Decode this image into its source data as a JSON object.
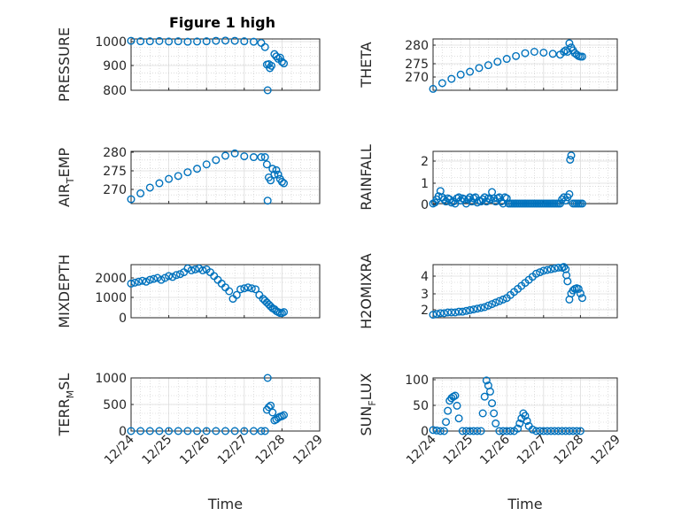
{
  "figure_title": "Figure 1 high",
  "x_tick_labels": [
    "12/24",
    "12/25",
    "12/26",
    "12/27",
    "12/28",
    "12/29"
  ],
  "x_label": "Time",
  "marker_color": "#0072BD",
  "panels": [
    {
      "id": "pressure",
      "ylabel_main": "PRESSURE",
      "ylabel_sub": "",
      "ylabel_tail": "",
      "yticks": [
        "800",
        "900",
        "1000"
      ]
    },
    {
      "id": "theta",
      "ylabel_main": "THETA",
      "ylabel_sub": "",
      "ylabel_tail": "",
      "yticks": [
        "270",
        "275",
        "280"
      ]
    },
    {
      "id": "air-temp",
      "ylabel_main": "AIR",
      "ylabel_sub": "T",
      "ylabel_tail": "EMP",
      "yticks": [
        "270",
        "275",
        "280"
      ]
    },
    {
      "id": "rainfall",
      "ylabel_main": "RAINFALL",
      "ylabel_sub": "",
      "ylabel_tail": "",
      "yticks": [
        "0",
        "1",
        "2"
      ]
    },
    {
      "id": "mixdepth",
      "ylabel_main": "MIXDEPTH",
      "ylabel_sub": "",
      "ylabel_tail": "",
      "yticks": [
        "0",
        "1000",
        "2000"
      ]
    },
    {
      "id": "h2omixra",
      "ylabel_main": "H2OMIXRA",
      "ylabel_sub": "",
      "ylabel_tail": "",
      "yticks": [
        "2",
        "3",
        "4"
      ]
    },
    {
      "id": "terr-msl",
      "ylabel_main": "TERR",
      "ylabel_sub": "M",
      "ylabel_tail": "SL",
      "yticks": [
        "0",
        "500",
        "1000"
      ]
    },
    {
      "id": "sun-flux",
      "ylabel_main": "SUN",
      "ylabel_sub": "F",
      "ylabel_tail": "LUX",
      "yticks": [
        "0",
        "50",
        "100"
      ]
    }
  ],
  "chart_data": [
    {
      "type": "scatter",
      "title": "Figure 1 high",
      "xlabel": "",
      "ylabel": "PRESSURE",
      "xlim": [
        0,
        5
      ],
      "ylim": [
        800,
        1020
      ],
      "x": [
        0,
        0.25,
        0.5,
        0.75,
        1,
        1.25,
        1.5,
        1.75,
        2,
        2.25,
        2.5,
        2.75,
        3,
        3.25,
        3.45,
        3.55,
        3.6,
        3.62,
        3.65,
        3.68,
        3.72,
        3.8,
        3.85,
        3.9,
        3.95,
        4.0,
        4.05
      ],
      "y": [
        1012,
        1010,
        1010,
        1011,
        1009,
        1010,
        1008,
        1009,
        1010,
        1012,
        1013,
        1012,
        1010,
        1008,
        1003,
        985,
        910,
        800,
        912,
        895,
        905,
        955,
        945,
        935,
        940,
        922,
        915
      ]
    },
    {
      "type": "scatter",
      "title": "",
      "xlabel": "",
      "ylabel": "THETA",
      "xlim": [
        0,
        5
      ],
      "ylim": [
        265,
        283
      ],
      "x": [
        0,
        0.25,
        0.5,
        0.75,
        1,
        1.25,
        1.5,
        1.75,
        2,
        2.25,
        2.5,
        2.75,
        3,
        3.25,
        3.45,
        3.55,
        3.6,
        3.65,
        3.7,
        3.75,
        3.8,
        3.85,
        3.9,
        3.95,
        4.0,
        4.05
      ],
      "y": [
        265.5,
        267.5,
        269,
        270.5,
        271.5,
        272.8,
        273.8,
        275,
        276,
        277,
        278,
        278.5,
        278.2,
        277.8,
        277.5,
        278.5,
        279,
        278.5,
        281.5,
        280,
        279,
        278,
        277.5,
        277,
        276.8,
        276.8
      ]
    },
    {
      "type": "scatter",
      "title": "",
      "xlabel": "",
      "ylabel": "AIR_TEMP",
      "xlim": [
        0,
        5
      ],
      "ylim": [
        263,
        281
      ],
      "x": [
        0,
        0.25,
        0.5,
        0.75,
        1,
        1.25,
        1.5,
        1.75,
        2,
        2.25,
        2.5,
        2.75,
        3,
        3.25,
        3.45,
        3.55,
        3.6,
        3.62,
        3.65,
        3.7,
        3.75,
        3.8,
        3.85,
        3.9,
        3.95,
        4.0,
        4.05
      ],
      "y": [
        264.5,
        266.5,
        268.5,
        270,
        271.5,
        272.5,
        273.8,
        275,
        276.5,
        278,
        279.5,
        280.3,
        279.3,
        279,
        279,
        279,
        276.5,
        264,
        272,
        271,
        275,
        273,
        274.5,
        273,
        271.5,
        270.5,
        270
      ]
    },
    {
      "type": "scatter",
      "title": "",
      "xlabel": "",
      "ylabel": "RAINFALL",
      "xlim": [
        0,
        5
      ],
      "ylim": [
        0,
        2.5
      ],
      "x": [
        0,
        0.05,
        0.1,
        0.15,
        0.2,
        0.25,
        0.3,
        0.35,
        0.4,
        0.45,
        0.5,
        0.55,
        0.6,
        0.65,
        0.7,
        0.75,
        0.8,
        0.85,
        0.9,
        0.95,
        1.0,
        1.05,
        1.1,
        1.15,
        1.2,
        1.25,
        1.3,
        1.35,
        1.4,
        1.45,
        1.5,
        1.55,
        1.6,
        1.65,
        1.7,
        1.75,
        1.8,
        1.85,
        1.9,
        1.95,
        2.0,
        2.05,
        2.1,
        2.15,
        2.2,
        2.25,
        2.3,
        2.35,
        2.4,
        2.45,
        2.5,
        2.55,
        2.6,
        2.65,
        2.7,
        2.75,
        2.8,
        2.85,
        2.9,
        2.95,
        3.0,
        3.05,
        3.1,
        3.15,
        3.2,
        3.25,
        3.3,
        3.35,
        3.4,
        3.45,
        3.5,
        3.55,
        3.6,
        3.65,
        3.7,
        3.72,
        3.75,
        3.8,
        3.85,
        3.9,
        3.95,
        4.0,
        4.05
      ],
      "y": [
        0,
        0.05,
        0.2,
        0.35,
        0.6,
        0.3,
        0.2,
        0.1,
        0.25,
        0.2,
        0.05,
        0.1,
        0,
        0.25,
        0.3,
        0.15,
        0.25,
        0.2,
        0,
        0.2,
        0.3,
        0.1,
        0.25,
        0.3,
        0.05,
        0.15,
        0.1,
        0.2,
        0.3,
        0.1,
        0.25,
        0.2,
        0.55,
        0.25,
        0.1,
        0.25,
        0.3,
        0.1,
        0,
        0.3,
        0.25,
        0,
        0,
        0,
        0,
        0,
        0,
        0,
        0,
        0,
        0,
        0,
        0,
        0,
        0,
        0,
        0,
        0,
        0,
        0,
        0,
        0,
        0,
        0,
        0,
        0,
        0,
        0,
        0,
        0,
        0.2,
        0.3,
        0.15,
        0.3,
        0.45,
        2.1,
        2.3,
        0,
        0,
        0,
        0,
        0,
        0
      ]
    },
    {
      "type": "scatter",
      "title": "",
      "xlabel": "",
      "ylabel": "MIXDEPTH",
      "xlim": [
        0,
        5
      ],
      "ylim": [
        0,
        2800
      ],
      "x": [
        0,
        0.1,
        0.2,
        0.3,
        0.4,
        0.5,
        0.6,
        0.7,
        0.8,
        0.9,
        1.0,
        1.1,
        1.2,
        1.3,
        1.4,
        1.5,
        1.6,
        1.7,
        1.8,
        1.9,
        2.0,
        2.1,
        2.2,
        2.3,
        2.4,
        2.5,
        2.6,
        2.7,
        2.8,
        2.9,
        3.0,
        3.1,
        3.2,
        3.3,
        3.4,
        3.5,
        3.55,
        3.6,
        3.65,
        3.7,
        3.75,
        3.8,
        3.85,
        3.9,
        3.95,
        4.0,
        4.05
      ],
      "y": [
        1800,
        1850,
        1900,
        1950,
        1900,
        2000,
        2050,
        2100,
        2000,
        2100,
        2200,
        2150,
        2250,
        2300,
        2400,
        2600,
        2500,
        2550,
        2600,
        2500,
        2550,
        2400,
        2200,
        2000,
        1800,
        1600,
        1400,
        1000,
        1200,
        1500,
        1550,
        1600,
        1550,
        1500,
        1200,
        1000,
        900,
        800,
        700,
        600,
        500,
        450,
        350,
        300,
        250,
        250,
        300
      ]
    },
    {
      "type": "scatter",
      "title": "",
      "xlabel": "",
      "ylabel": "H2OMIXRA",
      "xlim": [
        0,
        5
      ],
      "ylim": [
        1.4,
        4.9
      ],
      "x": [
        0,
        0.1,
        0.2,
        0.3,
        0.4,
        0.5,
        0.6,
        0.7,
        0.8,
        0.9,
        1.0,
        1.1,
        1.2,
        1.3,
        1.4,
        1.5,
        1.6,
        1.7,
        1.8,
        1.9,
        2.0,
        2.1,
        2.2,
        2.3,
        2.4,
        2.5,
        2.6,
        2.7,
        2.8,
        2.9,
        3.0,
        3.1,
        3.2,
        3.3,
        3.4,
        3.5,
        3.55,
        3.6,
        3.62,
        3.65,
        3.7,
        3.75,
        3.8,
        3.85,
        3.9,
        3.95,
        4.0,
        4.05
      ],
      "y": [
        1.6,
        1.65,
        1.7,
        1.7,
        1.75,
        1.75,
        1.75,
        1.8,
        1.8,
        1.85,
        1.9,
        1.95,
        2.0,
        2.05,
        2.1,
        2.2,
        2.3,
        2.4,
        2.5,
        2.6,
        2.7,
        2.9,
        3.1,
        3.3,
        3.5,
        3.7,
        3.9,
        4.1,
        4.3,
        4.4,
        4.5,
        4.55,
        4.6,
        4.65,
        4.7,
        4.7,
        4.75,
        4.6,
        4.2,
        3.8,
        2.6,
        3.0,
        3.2,
        3.3,
        3.35,
        3.3,
        3.0,
        2.7
      ]
    },
    {
      "type": "scatter",
      "title": "",
      "xlabel": "Time",
      "ylabel": "TERR_MSL",
      "xlim": [
        0,
        5
      ],
      "ylim": [
        0,
        1000
      ],
      "x": [
        0,
        0.25,
        0.5,
        0.75,
        1,
        1.25,
        1.5,
        1.75,
        2,
        2.25,
        2.5,
        2.75,
        3,
        3.25,
        3.45,
        3.55,
        3.6,
        3.62,
        3.65,
        3.7,
        3.75,
        3.8,
        3.85,
        3.9,
        3.95,
        4.0,
        4.05
      ],
      "y": [
        0,
        0,
        0,
        0,
        0,
        0,
        0,
        0,
        0,
        0,
        0,
        0,
        0,
        0,
        0,
        0,
        400,
        1000,
        450,
        480,
        350,
        200,
        220,
        250,
        270,
        280,
        300
      ]
    },
    {
      "type": "scatter",
      "title": "",
      "xlabel": "Time",
      "ylabel": "SUN_FLUX",
      "xlim": [
        0,
        5
      ],
      "ylim": [
        0,
        105
      ],
      "x": [
        0,
        0.1,
        0.2,
        0.3,
        0.35,
        0.4,
        0.45,
        0.5,
        0.55,
        0.6,
        0.65,
        0.7,
        0.8,
        0.9,
        1.0,
        1.1,
        1.2,
        1.3,
        1.35,
        1.4,
        1.45,
        1.5,
        1.55,
        1.6,
        1.65,
        1.7,
        1.8,
        1.9,
        2.0,
        2.1,
        2.2,
        2.3,
        2.35,
        2.4,
        2.45,
        2.5,
        2.55,
        2.6,
        2.7,
        2.8,
        2.9,
        3.0,
        3.1,
        3.2,
        3.3,
        3.4,
        3.5,
        3.6,
        3.7,
        3.8,
        3.9,
        4.0
      ],
      "y": [
        2,
        1,
        0,
        0,
        18,
        40,
        60,
        65,
        68,
        70,
        50,
        25,
        0,
        0,
        0,
        0,
        0,
        0,
        35,
        68,
        100,
        90,
        78,
        55,
        35,
        15,
        0,
        0,
        0,
        0,
        0,
        5,
        15,
        25,
        35,
        30,
        20,
        10,
        3,
        0,
        0,
        0,
        0,
        0,
        0,
        0,
        0,
        0,
        0,
        0,
        0,
        0
      ]
    }
  ]
}
